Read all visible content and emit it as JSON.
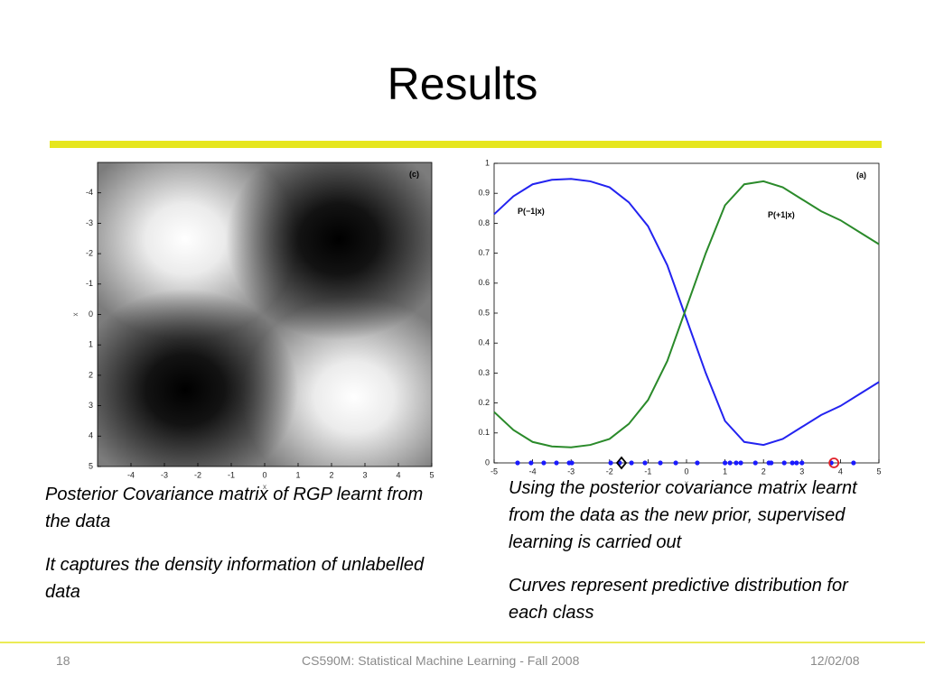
{
  "header": {
    "title": "Results"
  },
  "chart_data": [
    {
      "type": "heatmap",
      "annotation": "(c)",
      "xlabel": "x",
      "ylabel": "x",
      "xlim": [
        -5,
        5
      ],
      "ylim": [
        -5,
        5
      ],
      "y_reversed": true,
      "xticks": [
        -4,
        -3,
        -2,
        -1,
        0,
        1,
        2,
        3,
        4,
        5
      ],
      "yticks": [
        -4,
        -3,
        -2,
        -1,
        0,
        1,
        2,
        3,
        4,
        5
      ]
    },
    {
      "type": "line",
      "annotation": "(a)",
      "xlabel": "x",
      "x": [
        -5,
        -4.5,
        -4,
        -3.5,
        -3,
        -2.5,
        -2,
        -1.5,
        -1,
        -0.5,
        0,
        0.5,
        1,
        1.5,
        2,
        2.5,
        3,
        3.5,
        4,
        4.5,
        5
      ],
      "series": [
        {
          "name": "P(−1|x)",
          "color": "#2323f0",
          "values": [
            0.83,
            0.89,
            0.93,
            0.945,
            0.948,
            0.94,
            0.92,
            0.87,
            0.79,
            0.66,
            0.48,
            0.3,
            0.14,
            0.07,
            0.06,
            0.08,
            0.12,
            0.16,
            0.19,
            0.23,
            0.27
          ]
        },
        {
          "name": "P(+1|x)",
          "color": "#2a8a2a",
          "values": [
            0.17,
            0.11,
            0.07,
            0.055,
            0.052,
            0.06,
            0.08,
            0.13,
            0.21,
            0.34,
            0.52,
            0.7,
            0.86,
            0.93,
            0.94,
            0.92,
            0.88,
            0.84,
            0.81,
            0.77,
            0.73
          ]
        }
      ],
      "points": {
        "color": "#1a1aff",
        "y": 0,
        "x": [
          -4.39,
          -4.04,
          -3.71,
          -3.38,
          -3.05,
          -2.98,
          -1.97,
          -1.74,
          -1.43,
          -1.08,
          -0.68,
          -0.28,
          0.28,
          1.0,
          1.13,
          1.29,
          1.41,
          1.79,
          2.14,
          2.2,
          2.54,
          2.75,
          2.86,
          3.0,
          3.76,
          4.34
        ]
      },
      "highlights": [
        {
          "x": -1.69,
          "y": 0,
          "marker": "diamond",
          "color": "#000000"
        },
        {
          "x": 3.83,
          "y": 0,
          "marker": "circle",
          "color": "#e0202a"
        }
      ],
      "xlim": [
        -5,
        5
      ],
      "ylim": [
        0,
        1
      ],
      "xticks": [
        -5,
        -4,
        -3,
        -2,
        -1,
        0,
        1,
        2,
        3,
        4,
        5
      ],
      "yticks": [
        0,
        0.1,
        0.2,
        0.3,
        0.4,
        0.5,
        0.6,
        0.7,
        0.8,
        0.9,
        1
      ]
    }
  ],
  "captions": {
    "left": [
      "Posterior Covariance matrix of RGP learnt from the data",
      "It captures the density information of unlabelled data"
    ],
    "right": [
      "Using the posterior covariance matrix learnt from the data as the new prior, supervised learning is carried out",
      "Curves represent predictive distribution for each class"
    ]
  },
  "footer": {
    "page": "18",
    "course": "CS590M: Statistical Machine Learning - Fall 2008",
    "date": "12/02/08"
  }
}
